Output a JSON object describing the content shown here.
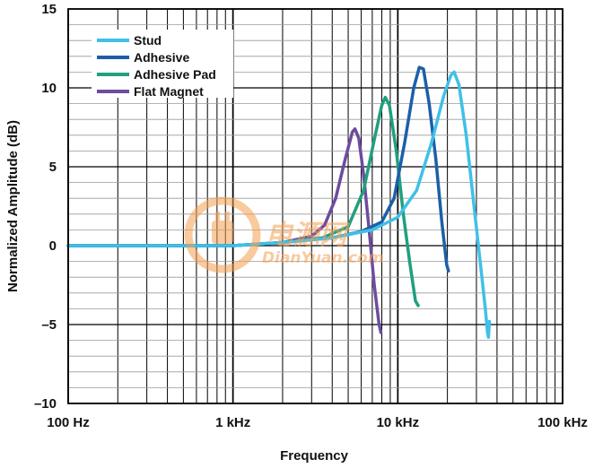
{
  "chart_data": {
    "type": "line",
    "xlabel": "Frequency",
    "ylabel": "Normalized Amplitude (dB)",
    "x_scale": "log",
    "xlim": [
      100,
      100000
    ],
    "ylim": [
      -10,
      15
    ],
    "x_ticks": [
      {
        "value": 100,
        "label": "100 Hz"
      },
      {
        "value": 1000,
        "label": "1 kHz"
      },
      {
        "value": 10000,
        "label": "10 kHz"
      },
      {
        "value": 100000,
        "label": "100 kHz"
      }
    ],
    "y_ticks": [
      {
        "value": 15,
        "label": "15"
      },
      {
        "value": 10,
        "label": "10"
      },
      {
        "value": 5,
        "label": "5"
      },
      {
        "value": 0,
        "label": "0"
      },
      {
        "value": -5,
        "label": "–5"
      },
      {
        "value": -10,
        "label": "–10"
      }
    ],
    "grid": true,
    "legend_position": "top-left",
    "series": [
      {
        "name": "Flat Magnet",
        "color": "#6d4c9f",
        "points": [
          [
            100,
            0
          ],
          [
            500,
            0
          ],
          [
            1000,
            0
          ],
          [
            2000,
            0.2
          ],
          [
            3000,
            0.6
          ],
          [
            3600,
            1.3
          ],
          [
            4200,
            3.0
          ],
          [
            4800,
            5.5
          ],
          [
            5300,
            7.2
          ],
          [
            5500,
            7.4
          ],
          [
            5800,
            6.8
          ],
          [
            6200,
            4.5
          ],
          [
            6700,
            1.0
          ],
          [
            7200,
            -2.5
          ],
          [
            7700,
            -5.0
          ],
          [
            7900,
            -5.5
          ]
        ]
      },
      {
        "name": "Adhesive Pad",
        "color": "#1fa07e",
        "points": [
          [
            100,
            0
          ],
          [
            500,
            0
          ],
          [
            1000,
            0
          ],
          [
            2000,
            0.2
          ],
          [
            3500,
            0.5
          ],
          [
            5000,
            1.2
          ],
          [
            6200,
            3.5
          ],
          [
            7300,
            7.0
          ],
          [
            8000,
            8.9
          ],
          [
            8400,
            9.4
          ],
          [
            8900,
            8.9
          ],
          [
            9800,
            6.0
          ],
          [
            10800,
            2.0
          ],
          [
            11800,
            -1.0
          ],
          [
            12800,
            -3.5
          ],
          [
            13300,
            -3.8
          ]
        ]
      },
      {
        "name": "Adhesive",
        "color": "#1c5fa8",
        "points": [
          [
            100,
            0
          ],
          [
            500,
            0
          ],
          [
            1000,
            0
          ],
          [
            2000,
            0.2
          ],
          [
            4000,
            0.5
          ],
          [
            6000,
            0.9
          ],
          [
            8000,
            1.5
          ],
          [
            9500,
            3.0
          ],
          [
            11000,
            6.5
          ],
          [
            12500,
            10.0
          ],
          [
            13500,
            11.3
          ],
          [
            14300,
            11.2
          ],
          [
            15500,
            9.0
          ],
          [
            17000,
            5.5
          ],
          [
            18500,
            1.5
          ],
          [
            19800,
            -1.2
          ],
          [
            20300,
            -1.6
          ]
        ]
      },
      {
        "name": "Stud",
        "color": "#3fc0e8",
        "points": [
          [
            100,
            0
          ],
          [
            500,
            0
          ],
          [
            1000,
            0
          ],
          [
            2000,
            0.2
          ],
          [
            4000,
            0.5
          ],
          [
            7000,
            1.0
          ],
          [
            10000,
            1.8
          ],
          [
            13000,
            3.5
          ],
          [
            16000,
            6.5
          ],
          [
            19000,
            9.5
          ],
          [
            21000,
            10.8
          ],
          [
            22000,
            11.0
          ],
          [
            23500,
            10.2
          ],
          [
            26000,
            7.0
          ],
          [
            29000,
            2.5
          ],
          [
            32000,
            -1.5
          ],
          [
            34000,
            -4.0
          ],
          [
            35000,
            -5.5
          ],
          [
            35500,
            -5.8
          ],
          [
            36000,
            -4.8
          ]
        ]
      }
    ]
  },
  "legend": [
    {
      "label": "Stud",
      "color": "#3fc0e8"
    },
    {
      "label": "Adhesive",
      "color": "#1c5fa8"
    },
    {
      "label": "Adhesive Pad",
      "color": "#1fa07e"
    },
    {
      "label": "Flat Magnet",
      "color": "#6d4c9f"
    }
  ],
  "watermark": {
    "text_cn": "电源网",
    "text_en": "DianYuan.com",
    "color": "#f5a050"
  }
}
